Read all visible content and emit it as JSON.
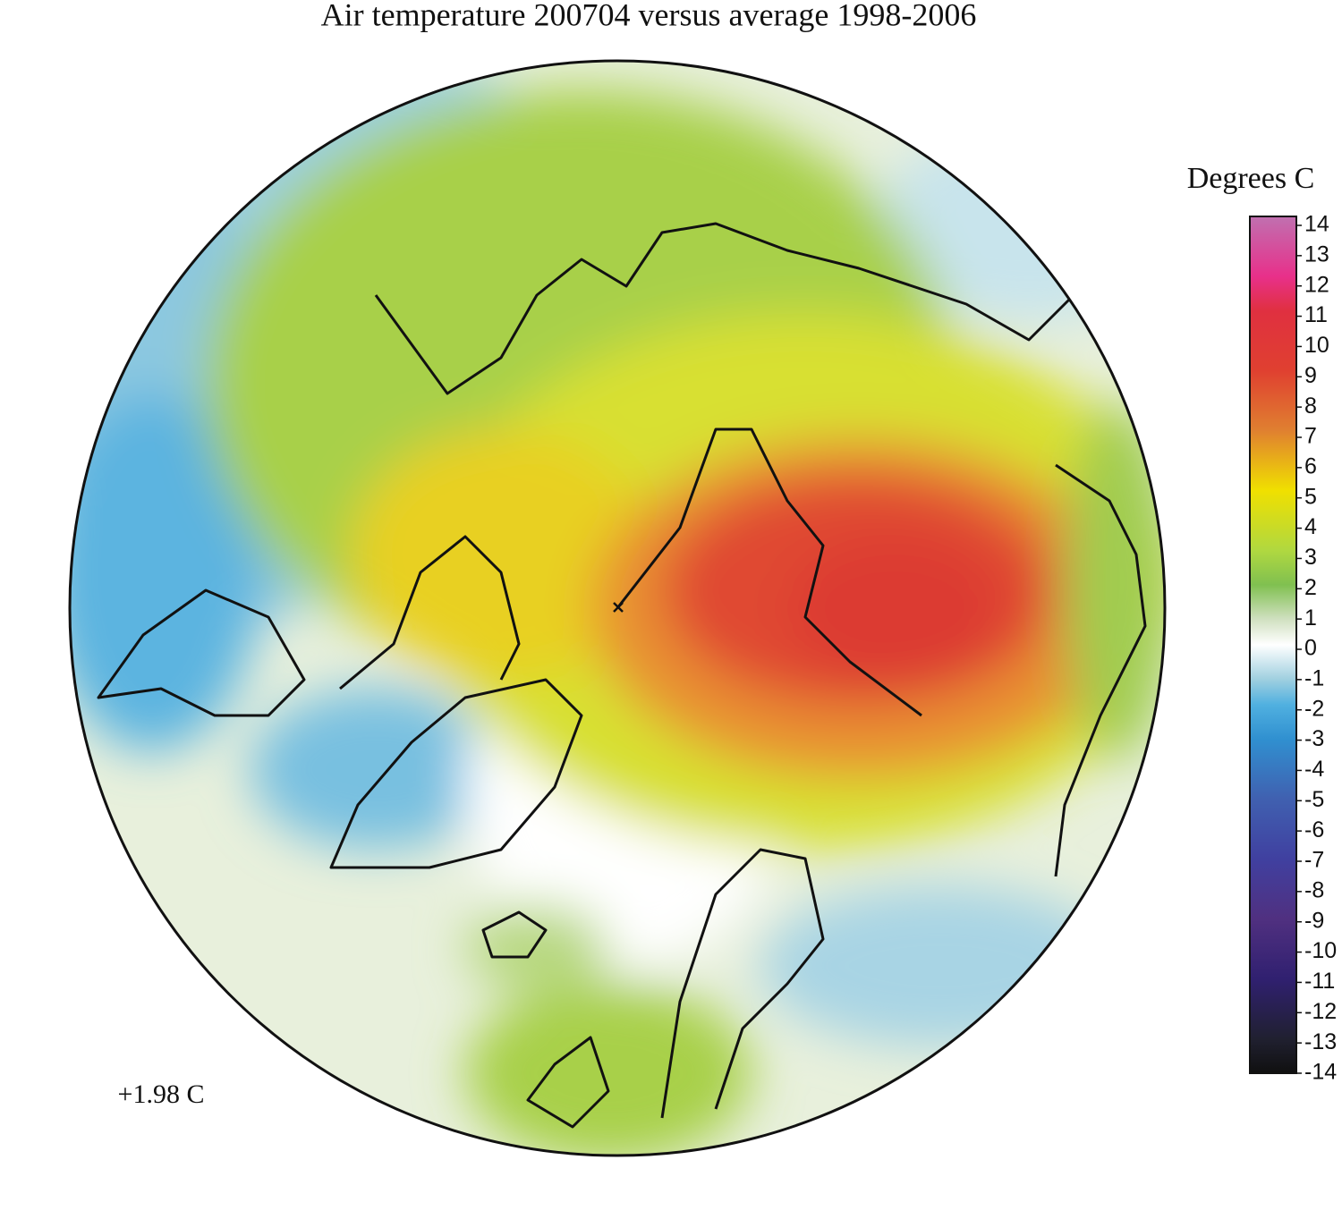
{
  "title": "Air temperature 200704 versus average 1998-2006",
  "colorbar": {
    "title": "Degrees C",
    "lim": [
      -14,
      14
    ],
    "ticks": [
      14,
      13,
      12,
      11,
      10,
      9,
      8,
      7,
      6,
      5,
      4,
      3,
      2,
      1,
      0,
      -1,
      -2,
      -3,
      -4,
      -5,
      -6,
      -7,
      -8,
      -9,
      -10,
      -11,
      -12,
      -13,
      -14
    ]
  },
  "annotation": "+1.98 C"
}
